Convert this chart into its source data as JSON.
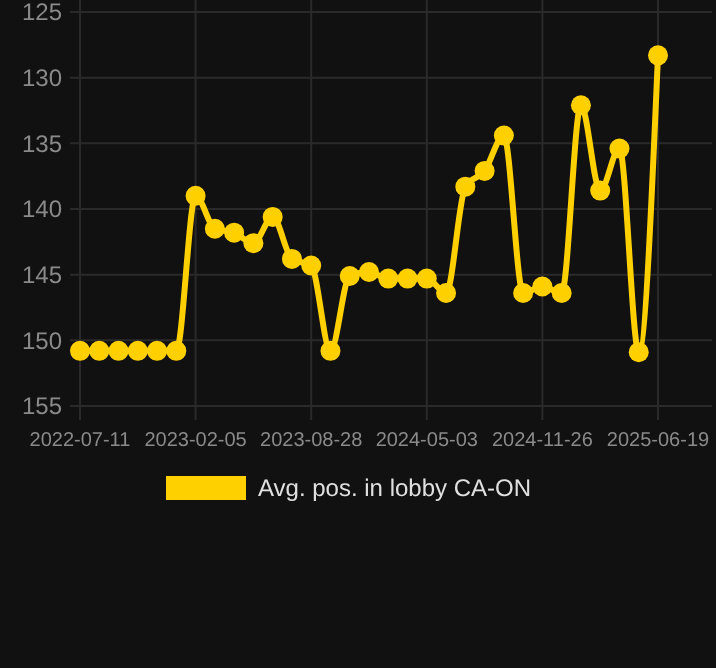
{
  "chart_data": {
    "type": "line",
    "categories": [
      "2022-07-11",
      null,
      null,
      null,
      null,
      null,
      "2023-02-05",
      null,
      null,
      null,
      null,
      null,
      "2023-08-28",
      null,
      null,
      null,
      null,
      null,
      "2024-05-03",
      null,
      null,
      null,
      null,
      null,
      "2024-11-26",
      null,
      null,
      null,
      null,
      null,
      "2025-06-19"
    ],
    "series": [
      {
        "name": "Avg. pos. in lobby CA-ON",
        "color": "#ffd000",
        "values": [
          150.8,
          150.8,
          150.8,
          150.8,
          150.8,
          150.8,
          139,
          141.5,
          141.8,
          142.6,
          140.6,
          143.8,
          144.3,
          150.8,
          145.1,
          144.8,
          145.3,
          145.3,
          145.3,
          146.4,
          138.3,
          137.1,
          134.4,
          146.4,
          145.9,
          146.4,
          132.1,
          138.6,
          135.4,
          150.9,
          128.3
        ]
      }
    ],
    "ylim": [
      155,
      125
    ],
    "yticks": [
      125,
      130,
      135,
      140,
      145,
      150,
      155
    ],
    "grid": true,
    "legend": "bottom",
    "marker": "circle",
    "line_style": "solid"
  }
}
